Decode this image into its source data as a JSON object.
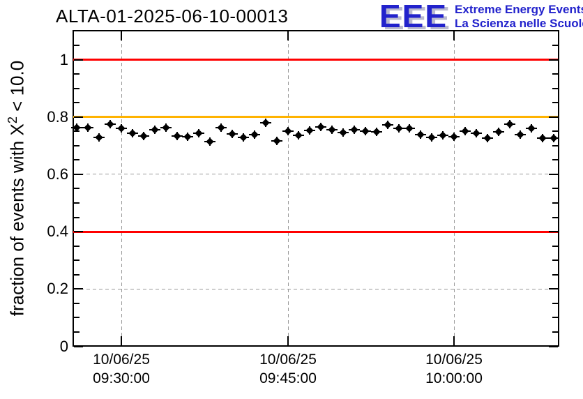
{
  "header": {
    "title": "ALTA-01-2025-06-10-00013"
  },
  "logo": {
    "acronym": "EEE",
    "line1": "Extreme Energy Events",
    "line2": "La Scienza nelle Scuole",
    "color": "#2222cc",
    "shadow_color": "#b9b9cf"
  },
  "chart_data": {
    "type": "scatter",
    "title": "ALTA-01-2025-06-10-00013",
    "xlabel": "",
    "ylabel": "fraction of events with X^2 < 10.0",
    "ylabel_parts": {
      "main": "fraction of events with X",
      "sup": "2",
      "rest": " < 10.0"
    },
    "ylim": [
      0,
      1.1
    ],
    "grid": true,
    "legend": false,
    "y_major_ticks": [
      0,
      0.2,
      0.4,
      0.6,
      0.8,
      1
    ],
    "y_tick_labels": [
      "0",
      "0.2",
      "0.4",
      "0.6",
      "0.8",
      "1"
    ],
    "y_minor_tick_step": 0.05,
    "x_ticks": [
      {
        "date": "10/06/25",
        "time": "09:30:00"
      },
      {
        "date": "10/06/25",
        "time": "09:45:00"
      },
      {
        "date": "10/06/25",
        "time": "10:00:00"
      }
    ],
    "reference_lines": [
      {
        "value": 1.0,
        "color": "#ff0000"
      },
      {
        "value": 0.8,
        "color": "#ffb300"
      },
      {
        "value": 0.4,
        "color": "#ff0000"
      }
    ],
    "series": [
      {
        "name": "fraction of events with X^2 < 10.0",
        "marker": "filled-diamond",
        "color": "#000000",
        "start_time": "09:26:00",
        "step_seconds": 60,
        "y_error": 0.012,
        "values": [
          0.763,
          0.763,
          0.729,
          0.775,
          0.76,
          0.743,
          0.734,
          0.755,
          0.763,
          0.734,
          0.731,
          0.743,
          0.714,
          0.763,
          0.741,
          0.729,
          0.738,
          0.78,
          0.717,
          0.751,
          0.736,
          0.753,
          0.765,
          0.755,
          0.746,
          0.755,
          0.751,
          0.748,
          0.773,
          0.76,
          0.76,
          0.738,
          0.729,
          0.736,
          0.731,
          0.751,
          0.743,
          0.726,
          0.748,
          0.775,
          0.738,
          0.76,
          0.726,
          0.726
        ]
      }
    ]
  },
  "colors": {
    "grid": "#999999",
    "axis": "#000000",
    "background": "#ffffff"
  }
}
